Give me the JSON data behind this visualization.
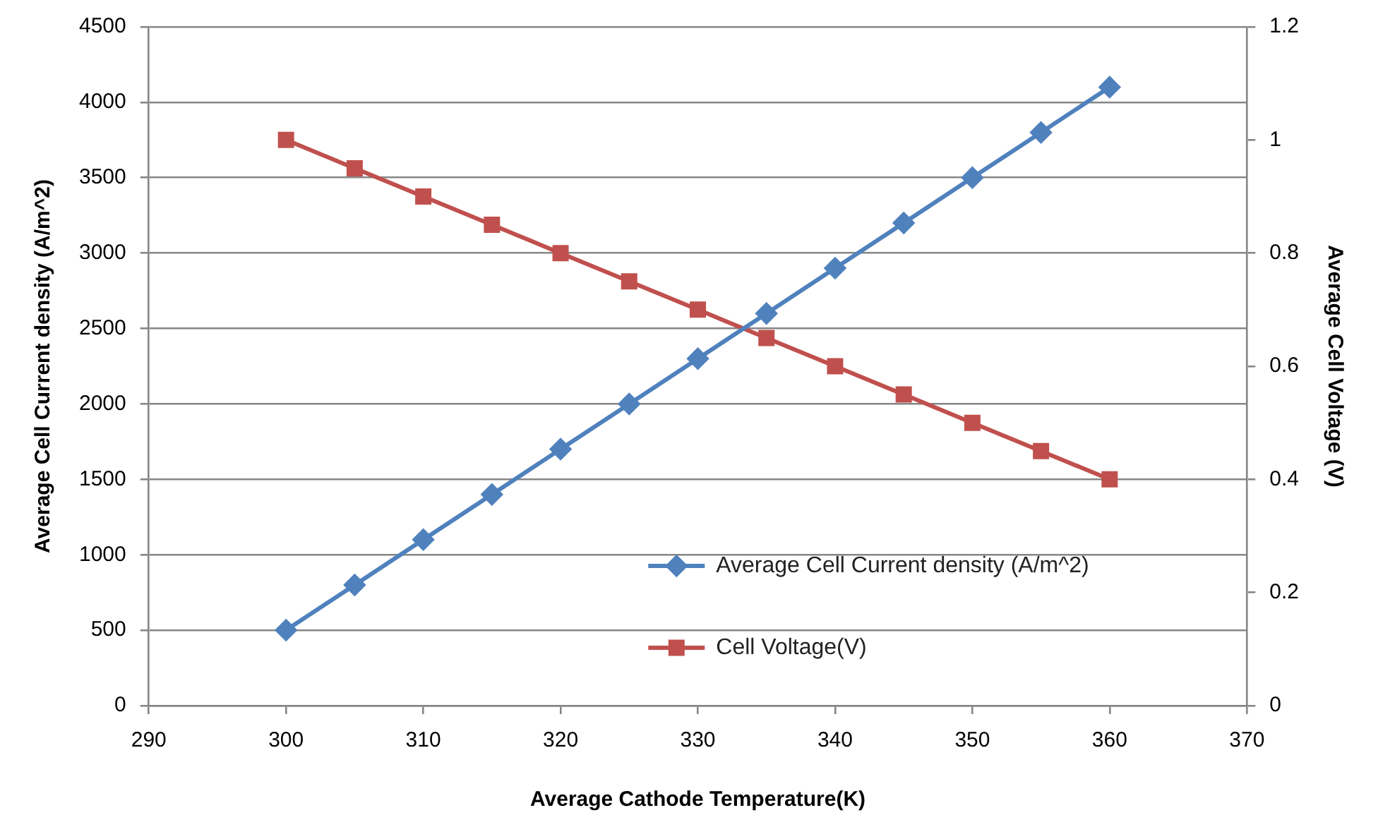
{
  "chart_data": {
    "type": "line",
    "xlabel": "Average Cathode Temperature(K)",
    "ylabel": "Average Cell Current density (A/m^2)",
    "y2label": "Average Cell Voltage (V)",
    "x": [
      300,
      305,
      310,
      315,
      320,
      325,
      330,
      335,
      340,
      345,
      350,
      355,
      360
    ],
    "series": [
      {
        "name": "Average Cell Current density (A/m^2)",
        "color": "#4f81bd",
        "marker": "diamond",
        "values": [
          500,
          800,
          1100,
          1400,
          1700,
          2000,
          2300,
          2600,
          2900,
          3200,
          3500,
          3800,
          4100
        ]
      },
      {
        "name": "Cell Voltage(V)",
        "color": "#c0504d",
        "marker": "square",
        "axis": "y2",
        "values": [
          1.0,
          0.95,
          0.9,
          0.85,
          0.8,
          0.75,
          0.7,
          0.65,
          0.6,
          0.55,
          0.5,
          0.45,
          0.4
        ]
      }
    ],
    "xlim": [
      290,
      370
    ],
    "xticks": [
      290,
      300,
      310,
      320,
      330,
      340,
      350,
      360,
      370
    ],
    "ylim": [
      0,
      4500
    ],
    "yticks": [
      0,
      500,
      1000,
      1500,
      2000,
      2500,
      3000,
      3500,
      4000,
      4500
    ],
    "y2lim": [
      0,
      1.2
    ],
    "y2ticks": [
      0,
      0.2,
      0.4,
      0.6,
      0.8,
      1,
      1.2
    ],
    "grid": "y",
    "legend": "bottom right",
    "line_style": "solid"
  }
}
